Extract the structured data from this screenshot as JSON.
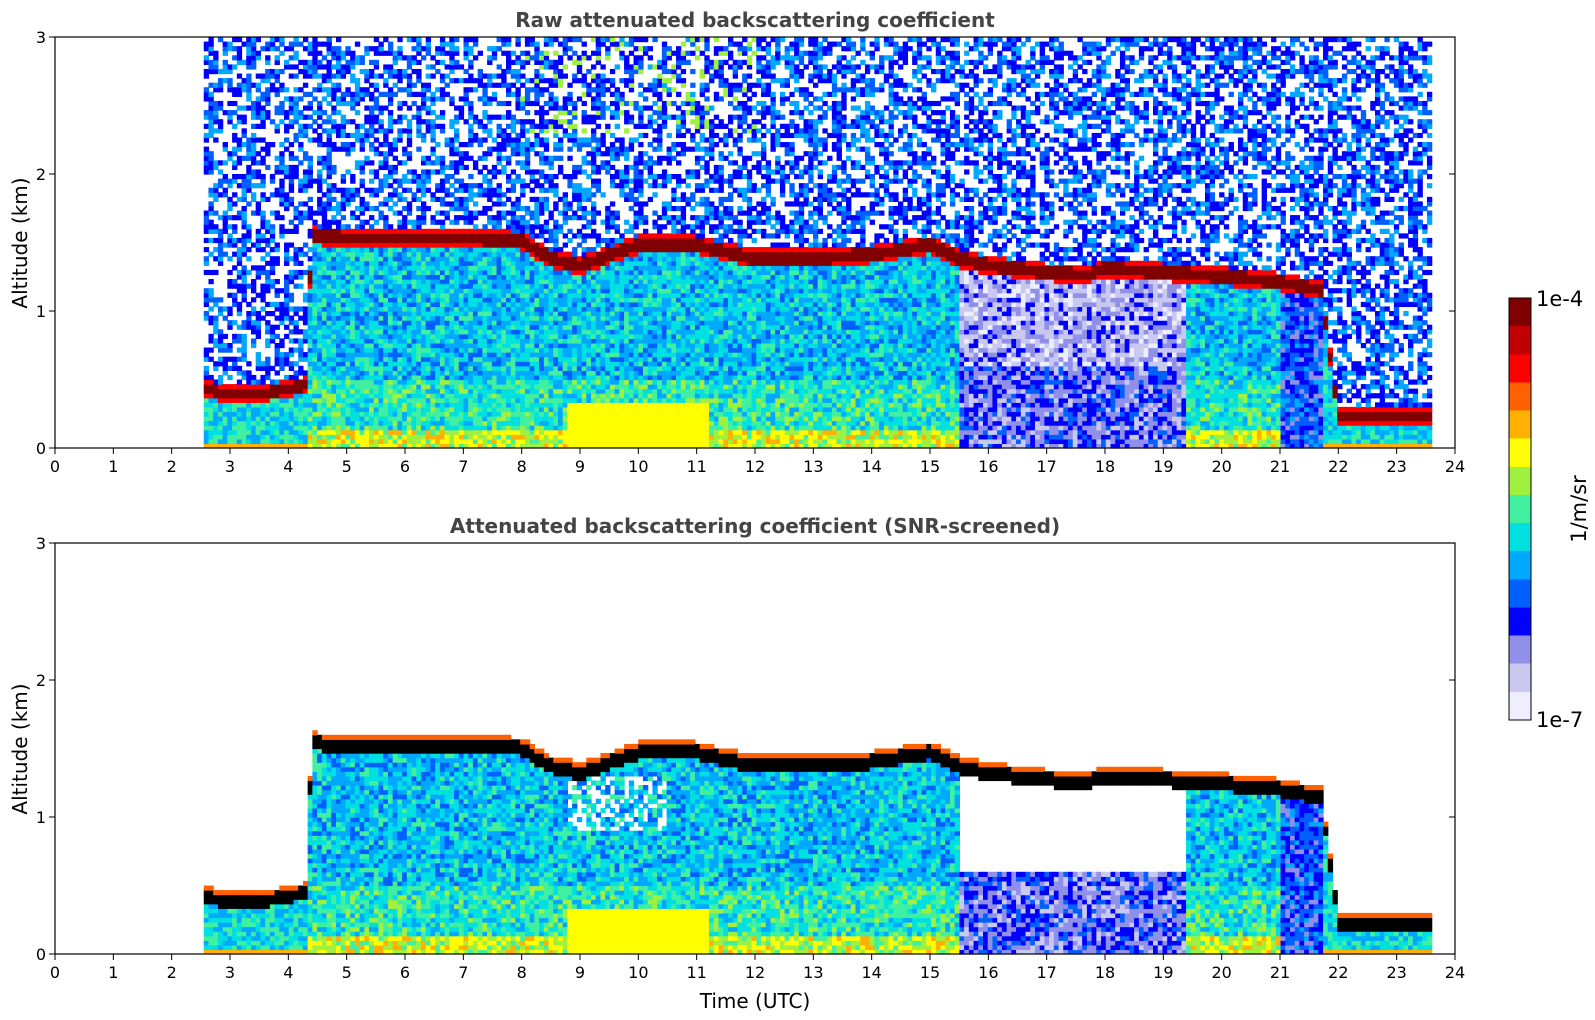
{
  "chart_data": [
    {
      "type": "heatmap",
      "title": "Raw attenuated backscattering coefficient",
      "xlabel": "",
      "ylabel": "Altitude (km)",
      "xlim": [
        0,
        24
      ],
      "ylim": [
        0,
        3
      ],
      "xticks": [
        "0",
        "1",
        "2",
        "3",
        "4",
        "5",
        "6",
        "7",
        "8",
        "9",
        "10",
        "11",
        "12",
        "13",
        "14",
        "15",
        "16",
        "17",
        "18",
        "19",
        "20",
        "21",
        "22",
        "23",
        "24"
      ],
      "yticks": [
        "0",
        "1",
        "2",
        "3"
      ],
      "data_time_range": [
        2.55,
        23.6
      ],
      "cloud_layer_top_km": [
        [
          2.55,
          0.5
        ],
        [
          3.0,
          0.45
        ],
        [
          3.5,
          0.45
        ],
        [
          4.0,
          0.5
        ],
        [
          4.3,
          0.52
        ],
        [
          4.4,
          1.62
        ],
        [
          5.0,
          1.6
        ],
        [
          6.0,
          1.6
        ],
        [
          7.0,
          1.6
        ],
        [
          8.0,
          1.58
        ],
        [
          8.5,
          1.45
        ],
        [
          9.0,
          1.4
        ],
        [
          10.0,
          1.55
        ],
        [
          11.0,
          1.55
        ],
        [
          12.0,
          1.45
        ],
        [
          13.0,
          1.45
        ],
        [
          14.0,
          1.48
        ],
        [
          15.0,
          1.55
        ],
        [
          15.5,
          1.45
        ],
        [
          16.0,
          1.4
        ],
        [
          17.0,
          1.35
        ],
        [
          17.7,
          1.33
        ],
        [
          18.0,
          1.38
        ],
        [
          19.0,
          1.35
        ],
        [
          20.0,
          1.32
        ],
        [
          21.0,
          1.28
        ],
        [
          21.7,
          1.22
        ],
        [
          22.0,
          0.3
        ],
        [
          22.5,
          0.3
        ],
        [
          23.0,
          0.3
        ],
        [
          23.6,
          0.3
        ]
      ],
      "colorbar": {
        "min": "1e-7",
        "max": "1e-4",
        "label": "1/m/sr",
        "scale": "log"
      }
    },
    {
      "type": "heatmap",
      "title": "Attenuated backscattering coefficient (SNR-screened)",
      "xlabel": "Time (UTC)",
      "ylabel": "Altitude (km)",
      "xlim": [
        0,
        24
      ],
      "ylim": [
        0,
        3
      ],
      "xticks": [
        "0",
        "1",
        "2",
        "3",
        "4",
        "5",
        "6",
        "7",
        "8",
        "9",
        "10",
        "11",
        "12",
        "13",
        "14",
        "15",
        "16",
        "17",
        "18",
        "19",
        "20",
        "21",
        "22",
        "23",
        "24"
      ],
      "yticks": [
        "0",
        "1",
        "2",
        "3"
      ],
      "data_time_range": [
        2.55,
        23.6
      ],
      "screened": true
    }
  ],
  "colorbar": {
    "min_label": "1e-7",
    "max_label": "1e-4",
    "unit_label": "1/m/sr"
  },
  "colors": {
    "colormap": [
      "#eeeeff",
      "#c8c8f0",
      "#9090e8",
      "#0000ff",
      "#0060ff",
      "#00a8ff",
      "#00e0e0",
      "#40f0a0",
      "#a0f040",
      "#ffff00",
      "#ffb000",
      "#ff6000",
      "#ff0000",
      "#c00000",
      "#800000"
    ],
    "saturated": "#000000"
  }
}
